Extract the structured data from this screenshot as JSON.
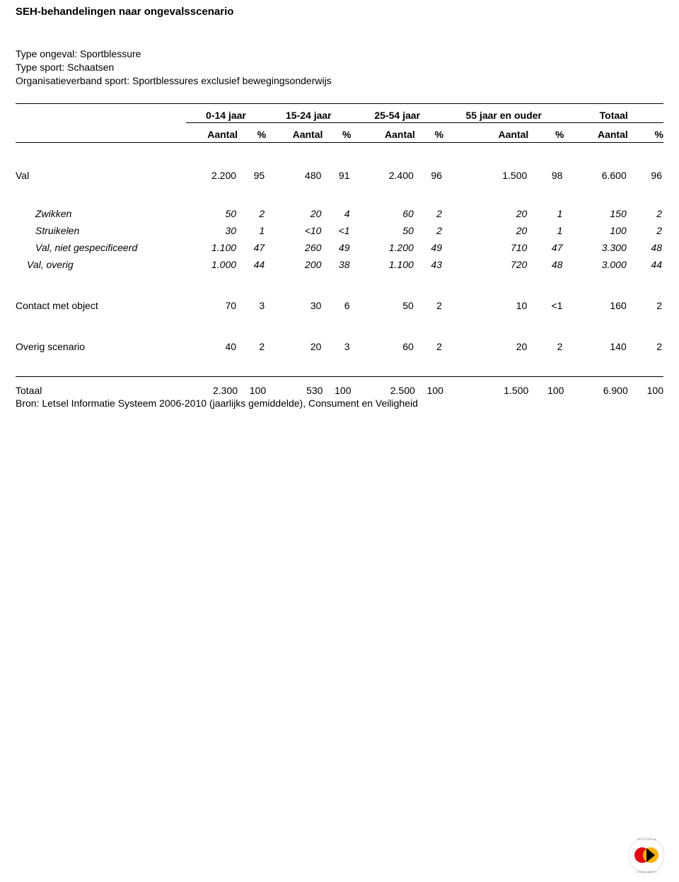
{
  "title": "SEH-behandelingen naar ongevalsscenario",
  "meta": {
    "line1": "Type ongeval: Sportblessure",
    "line2": "Type sport: Schaatsen",
    "line3": "Organisatieverband sport: Sportblessures exclusief bewegingsonderwijs"
  },
  "columns": {
    "group_headers": [
      "0-14 jaar",
      "15-24 jaar",
      "25-54 jaar",
      "55 jaar en ouder",
      "Totaal"
    ],
    "sub_headers": [
      "Aantal",
      "%",
      "Aantal",
      "%",
      "Aantal",
      "%",
      "Aantal",
      "%",
      "Aantal",
      "%"
    ]
  },
  "rows": [
    {
      "label": "Val",
      "indent": 0,
      "italic": false,
      "gap_before": "small",
      "cells": [
        "2.200",
        "95",
        "480",
        "91",
        "2.400",
        "96",
        "1.500",
        "98",
        "6.600",
        "96"
      ]
    },
    {
      "label": "Zwikken",
      "indent": 1,
      "italic": true,
      "gap_before": "small",
      "cells": [
        "50",
        "2",
        "20",
        "4",
        "60",
        "2",
        "20",
        "1",
        "150",
        "2"
      ]
    },
    {
      "label": "Struikelen",
      "indent": 1,
      "italic": true,
      "gap_before": "none",
      "cells": [
        "30",
        "1",
        "<10",
        "<1",
        "50",
        "2",
        "20",
        "1",
        "100",
        "2"
      ]
    },
    {
      "label": "Val, niet gespecificeerd",
      "indent": 1,
      "italic": true,
      "gap_before": "none",
      "cells": [
        "1.100",
        "47",
        "260",
        "49",
        "1.200",
        "49",
        "710",
        "47",
        "3.300",
        "48"
      ]
    },
    {
      "label": "Val, overig",
      "indent": 2,
      "italic": true,
      "gap_before": "none",
      "cells": [
        "1.000",
        "44",
        "200",
        "38",
        "1.100",
        "43",
        "720",
        "48",
        "3.000",
        "44"
      ]
    },
    {
      "label": "Contact met object",
      "indent": 0,
      "italic": false,
      "gap_before": "section",
      "cells": [
        "70",
        "3",
        "30",
        "6",
        "50",
        "2",
        "10",
        "<1",
        "160",
        "2"
      ]
    },
    {
      "label": "Overig scenario",
      "indent": 0,
      "italic": false,
      "gap_before": "section",
      "cells": [
        "40",
        "2",
        "20",
        "3",
        "60",
        "2",
        "20",
        "2",
        "140",
        "2"
      ]
    }
  ],
  "total": {
    "label": "Totaal",
    "cells": [
      "2.300",
      "100",
      "530",
      "100",
      "2.500",
      "100",
      "1.500",
      "100",
      "6.900",
      "100"
    ]
  },
  "source": "Bron: Letsel Informatie Systeem 2006-2010 (jaarlijks gemiddelde), Consument en Veiligheid",
  "layout": {
    "col_widths_pct": [
      24,
      7.3,
      4.0,
      8.0,
      4.0,
      9.0,
      4.0,
      12.0,
      5.0,
      9.0,
      5.0
    ],
    "font_family": "Arial",
    "base_font_size_pt": 10.5,
    "title_font_size_pt": 11.5,
    "text_color": "#000000",
    "background_color": "#ffffff",
    "rule_color": "#000000"
  },
  "logo": {
    "name": "consument-en-veiligheid-logo",
    "colors": {
      "ring": "#555555",
      "circle_left": "#e30613",
      "circle_right": "#f9b000",
      "triangle": "#000000"
    }
  }
}
